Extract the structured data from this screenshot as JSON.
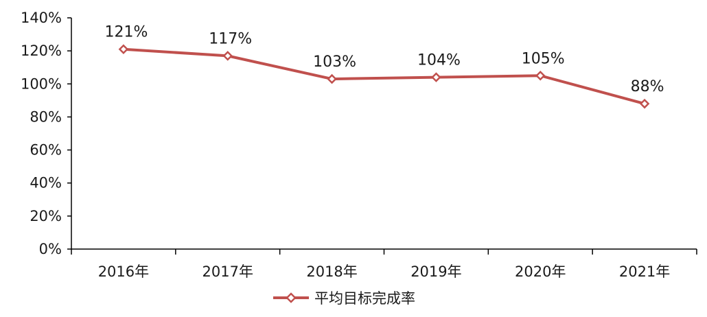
{
  "colors": {
    "series": "#c0504d",
    "axis": "#000000",
    "text": "#1a1a1a"
  },
  "chart_data": {
    "type": "line",
    "categories": [
      "2016年",
      "2017年",
      "2018年",
      "2019年",
      "2020年",
      "2021年"
    ],
    "series": [
      {
        "name": "平均目标完成率",
        "values": [
          121,
          117,
          103,
          104,
          105,
          88
        ],
        "marker": "diamond"
      }
    ],
    "data_labels": [
      "121%",
      "117%",
      "103%",
      "104%",
      "105%",
      "88%"
    ],
    "y_ticks": [
      "0%",
      "20%",
      "40%",
      "60%",
      "80%",
      "100%",
      "120%",
      "140%"
    ],
    "ylim": [
      0,
      140
    ],
    "title": "",
    "xlabel": "",
    "ylabel": "",
    "grid": false,
    "legend": "bottom-center"
  }
}
